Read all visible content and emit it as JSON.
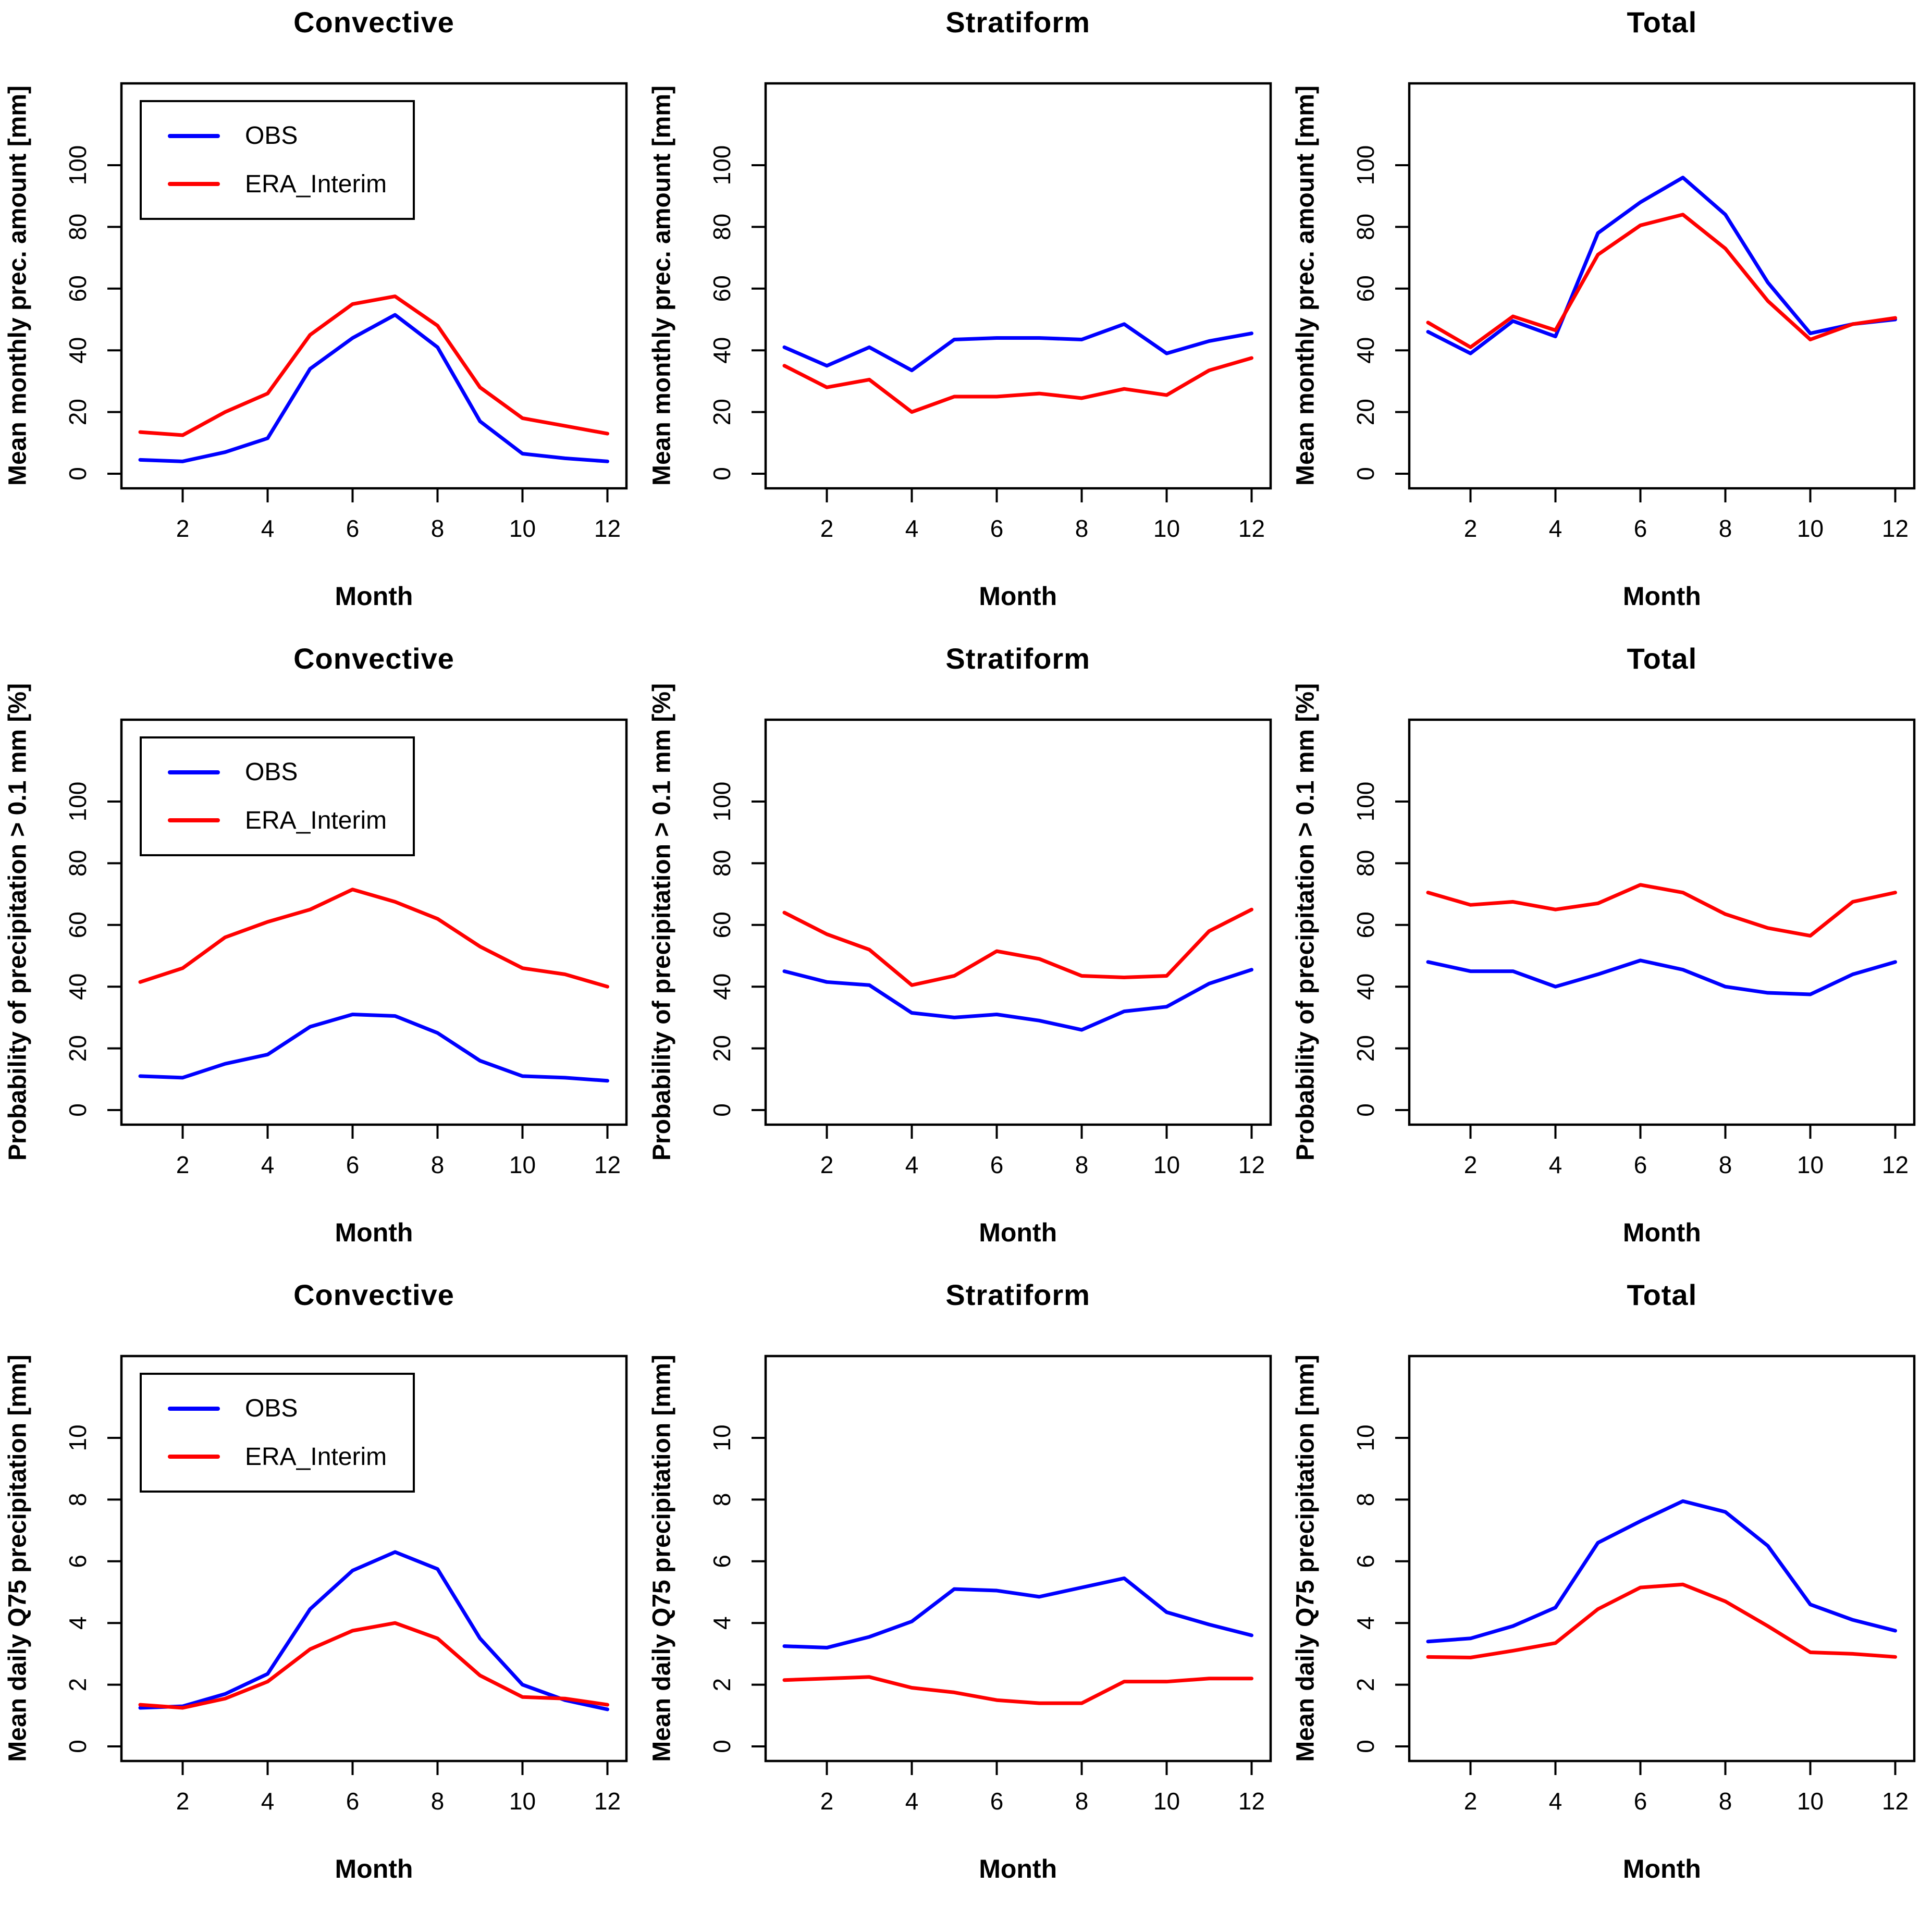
{
  "chart_data": [
    {
      "type": "line",
      "title": "Convective",
      "xlabel": "Month",
      "ylabel": "Mean monthly prec. amount [mm]",
      "x": [
        1,
        2,
        3,
        4,
        5,
        6,
        7,
        8,
        9,
        10,
        11,
        12
      ],
      "xticks": [
        2,
        4,
        6,
        8,
        10,
        12
      ],
      "yticks": [
        0,
        20,
        40,
        60,
        80,
        100
      ],
      "ylim": [
        0,
        121
      ],
      "grid": false,
      "show_legend": true,
      "legend_position": "top-left",
      "series": [
        {
          "name": "OBS",
          "color": "#0000ff",
          "values": [
            4.5,
            4,
            7,
            11.5,
            34,
            44,
            51.5,
            41,
            17,
            6.5,
            5,
            4
          ]
        },
        {
          "name": "ERA_Interim",
          "color": "#ff0000",
          "values": [
            13.5,
            12.5,
            20,
            26,
            45,
            55,
            57.5,
            48,
            28,
            18,
            15.5,
            13
          ]
        }
      ]
    },
    {
      "type": "line",
      "title": "Stratiform",
      "xlabel": "Month",
      "ylabel": "Mean monthly prec. amount [mm]",
      "x": [
        1,
        2,
        3,
        4,
        5,
        6,
        7,
        8,
        9,
        10,
        11,
        12
      ],
      "xticks": [
        2,
        4,
        6,
        8,
        10,
        12
      ],
      "yticks": [
        0,
        20,
        40,
        60,
        80,
        100
      ],
      "ylim": [
        0,
        121
      ],
      "grid": false,
      "show_legend": false,
      "legend_position": "none",
      "series": [
        {
          "name": "OBS",
          "color": "#0000ff",
          "values": [
            41,
            35,
            41,
            33.5,
            43.5,
            44,
            44,
            43.5,
            48.5,
            39,
            43,
            45.5
          ]
        },
        {
          "name": "ERA_Interim",
          "color": "#ff0000",
          "values": [
            35,
            28,
            30.5,
            20,
            25,
            25,
            26,
            24.5,
            27.5,
            25.5,
            33.5,
            37.5
          ]
        }
      ]
    },
    {
      "type": "line",
      "title": "Total",
      "xlabel": "Month",
      "ylabel": "Mean monthly prec. amount [mm]",
      "x": [
        1,
        2,
        3,
        4,
        5,
        6,
        7,
        8,
        9,
        10,
        11,
        12
      ],
      "xticks": [
        2,
        4,
        6,
        8,
        10,
        12
      ],
      "yticks": [
        0,
        20,
        40,
        60,
        80,
        100
      ],
      "ylim": [
        0,
        121
      ],
      "grid": false,
      "show_legend": false,
      "legend_position": "none",
      "series": [
        {
          "name": "OBS",
          "color": "#0000ff",
          "values": [
            46,
            39,
            49.5,
            44.5,
            78,
            88,
            96,
            84,
            62,
            45.5,
            48.5,
            50
          ]
        },
        {
          "name": "ERA_Interim",
          "color": "#ff0000",
          "values": [
            49,
            41,
            51,
            46.5,
            71,
            80.5,
            84,
            73,
            56,
            43.5,
            48.5,
            50.5
          ]
        }
      ]
    },
    {
      "type": "line",
      "title": "Convective",
      "xlabel": "Month",
      "ylabel": "Probability of precipitation > 0.1 mm [%]",
      "x": [
        1,
        2,
        3,
        4,
        5,
        6,
        7,
        8,
        9,
        10,
        11,
        12
      ],
      "xticks": [
        2,
        4,
        6,
        8,
        10,
        12
      ],
      "yticks": [
        0,
        20,
        40,
        60,
        80,
        100
      ],
      "ylim": [
        0,
        121
      ],
      "grid": false,
      "show_legend": true,
      "legend_position": "top-left",
      "series": [
        {
          "name": "OBS",
          "color": "#0000ff",
          "values": [
            11,
            10.5,
            15,
            18,
            27,
            31,
            30.5,
            25,
            16,
            11,
            10.5,
            9.5
          ]
        },
        {
          "name": "ERA_Interim",
          "color": "#ff0000",
          "values": [
            41.5,
            46,
            56,
            61,
            65,
            71.5,
            67.5,
            62,
            53,
            46,
            44,
            40
          ]
        }
      ]
    },
    {
      "type": "line",
      "title": "Stratiform",
      "xlabel": "Month",
      "ylabel": "Probability of precipitation > 0.1 mm [%]",
      "x": [
        1,
        2,
        3,
        4,
        5,
        6,
        7,
        8,
        9,
        10,
        11,
        12
      ],
      "xticks": [
        2,
        4,
        6,
        8,
        10,
        12
      ],
      "yticks": [
        0,
        20,
        40,
        60,
        80,
        100
      ],
      "ylim": [
        0,
        121
      ],
      "grid": false,
      "show_legend": false,
      "legend_position": "none",
      "series": [
        {
          "name": "OBS",
          "color": "#0000ff",
          "values": [
            45,
            41.5,
            40.5,
            31.5,
            30,
            31,
            29,
            26,
            32,
            33.5,
            41,
            45.5
          ]
        },
        {
          "name": "ERA_Interim",
          "color": "#ff0000",
          "values": [
            64,
            57,
            52,
            40.5,
            43.5,
            51.5,
            49,
            43.5,
            43,
            43.5,
            58,
            65
          ]
        }
      ]
    },
    {
      "type": "line",
      "title": "Total",
      "xlabel": "Month",
      "ylabel": "Probability of precipitation > 0.1 mm [%]",
      "x": [
        1,
        2,
        3,
        4,
        5,
        6,
        7,
        8,
        9,
        10,
        11,
        12
      ],
      "xticks": [
        2,
        4,
        6,
        8,
        10,
        12
      ],
      "yticks": [
        0,
        20,
        40,
        60,
        80,
        100
      ],
      "ylim": [
        0,
        121
      ],
      "grid": false,
      "show_legend": false,
      "legend_position": "none",
      "series": [
        {
          "name": "OBS",
          "color": "#0000ff",
          "values": [
            48,
            45,
            45,
            40,
            44,
            48.5,
            45.5,
            40,
            38,
            37.5,
            44,
            48
          ]
        },
        {
          "name": "ERA_Interim",
          "color": "#ff0000",
          "values": [
            70.5,
            66.5,
            67.5,
            65,
            67,
            73,
            70.5,
            63.5,
            59,
            56.5,
            67.5,
            70.5
          ]
        }
      ]
    },
    {
      "type": "line",
      "title": "Convective",
      "xlabel": "Month",
      "ylabel": "Mean daily Q75 precipitation [mm]",
      "x": [
        1,
        2,
        3,
        4,
        5,
        6,
        7,
        8,
        9,
        10,
        11,
        12
      ],
      "xticks": [
        2,
        4,
        6,
        8,
        10,
        12
      ],
      "yticks": [
        0,
        2,
        4,
        6,
        8,
        10
      ],
      "ylim": [
        0,
        12.1
      ],
      "grid": false,
      "show_legend": true,
      "legend_position": "top-left",
      "series": [
        {
          "name": "OBS",
          "color": "#0000ff",
          "values": [
            1.25,
            1.3,
            1.7,
            2.35,
            4.45,
            5.7,
            6.3,
            5.75,
            3.5,
            2.0,
            1.5,
            1.2
          ]
        },
        {
          "name": "ERA_Interim",
          "color": "#ff0000",
          "values": [
            1.35,
            1.25,
            1.55,
            2.1,
            3.15,
            3.75,
            4.0,
            3.5,
            2.3,
            1.6,
            1.55,
            1.35
          ]
        }
      ]
    },
    {
      "type": "line",
      "title": "Stratiform",
      "xlabel": "Month",
      "ylabel": "Mean daily Q75 precipitation [mm]",
      "x": [
        1,
        2,
        3,
        4,
        5,
        6,
        7,
        8,
        9,
        10,
        11,
        12
      ],
      "xticks": [
        2,
        4,
        6,
        8,
        10,
        12
      ],
      "yticks": [
        0,
        2,
        4,
        6,
        8,
        10
      ],
      "ylim": [
        0,
        12.1
      ],
      "grid": false,
      "show_legend": false,
      "legend_position": "none",
      "series": [
        {
          "name": "OBS",
          "color": "#0000ff",
          "values": [
            3.25,
            3.2,
            3.55,
            4.05,
            5.1,
            5.05,
            4.85,
            5.15,
            5.45,
            4.35,
            3.95,
            3.6
          ]
        },
        {
          "name": "ERA_Interim",
          "color": "#ff0000",
          "values": [
            2.15,
            2.2,
            2.25,
            1.9,
            1.75,
            1.5,
            1.4,
            1.4,
            2.1,
            2.1,
            2.2,
            2.2
          ]
        }
      ]
    },
    {
      "type": "line",
      "title": "Total",
      "xlabel": "Month",
      "ylabel": "Mean daily Q75 precipitation [mm]",
      "x": [
        1,
        2,
        3,
        4,
        5,
        6,
        7,
        8,
        9,
        10,
        11,
        12
      ],
      "xticks": [
        2,
        4,
        6,
        8,
        10,
        12
      ],
      "yticks": [
        0,
        2,
        4,
        6,
        8,
        10
      ],
      "ylim": [
        0,
        12.1
      ],
      "grid": false,
      "show_legend": false,
      "legend_position": "none",
      "series": [
        {
          "name": "OBS",
          "color": "#0000ff",
          "values": [
            3.4,
            3.5,
            3.9,
            4.5,
            6.6,
            7.3,
            7.95,
            7.6,
            6.5,
            4.6,
            4.1,
            3.75
          ]
        },
        {
          "name": "ERA_Interim",
          "color": "#ff0000",
          "values": [
            2.9,
            2.88,
            3.1,
            3.35,
            4.45,
            5.15,
            5.25,
            4.7,
            3.9,
            3.05,
            3.0,
            2.9
          ]
        }
      ]
    }
  ],
  "style": {
    "obs_color": "#0000ff",
    "era_color": "#ff0000",
    "axis_color": "#000000",
    "background": "#ffffff"
  }
}
